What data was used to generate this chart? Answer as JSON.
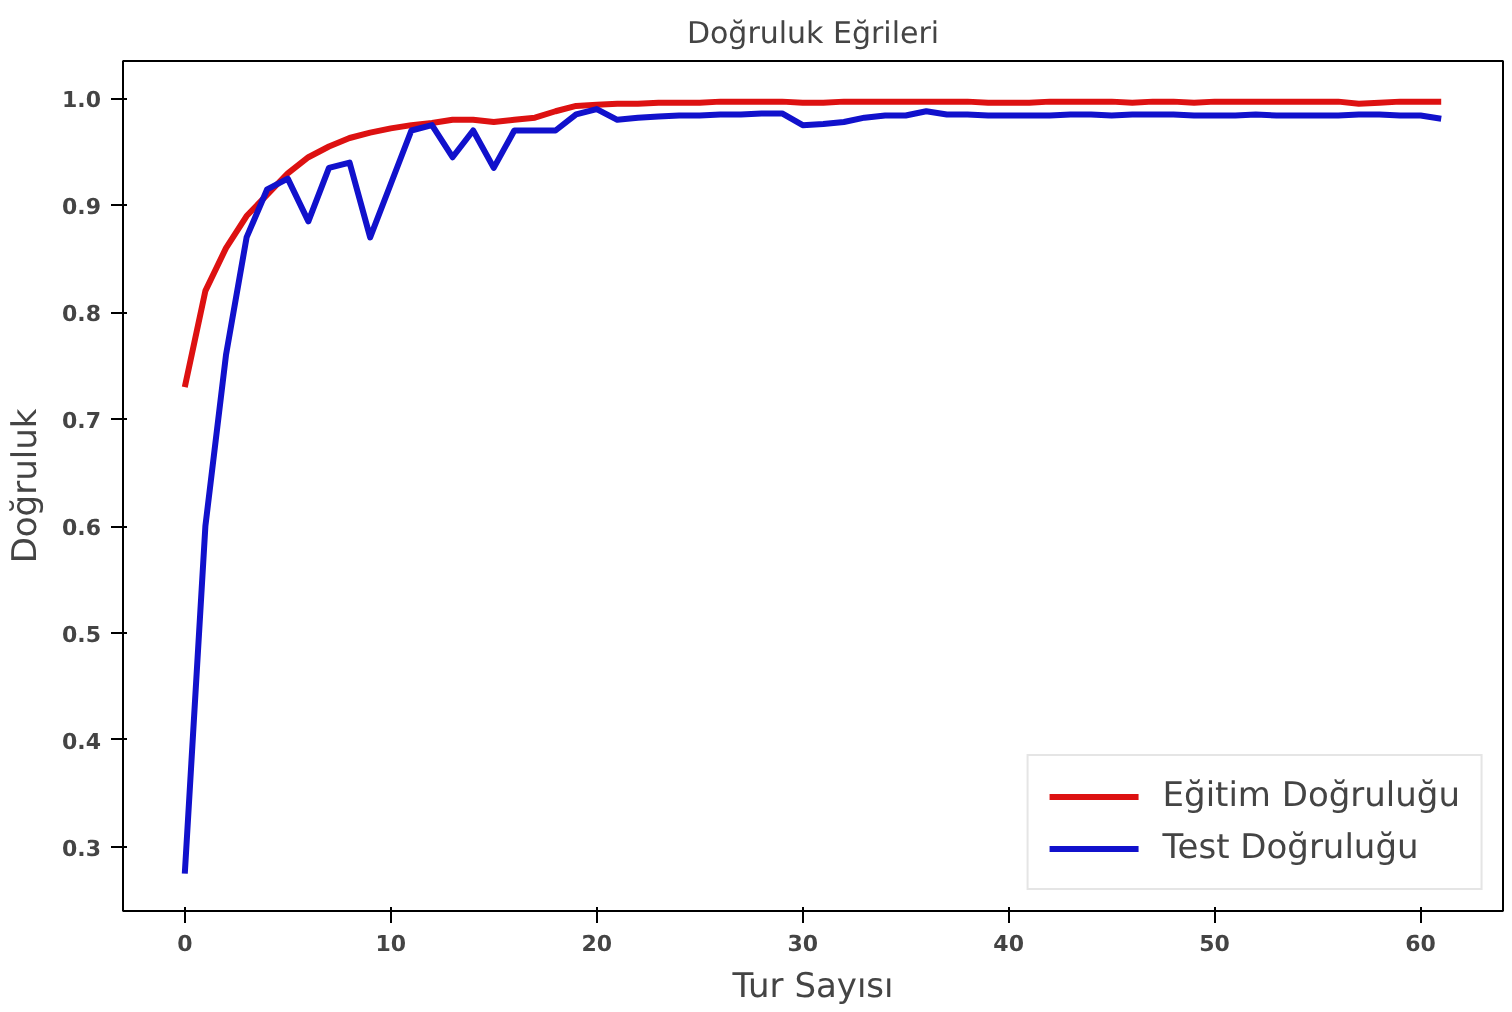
{
  "chart_data": {
    "type": "line",
    "title": "Doğruluk Eğrileri",
    "xlabel": "Tur Sayısı",
    "ylabel": "Doğruluk",
    "x": [
      0,
      1,
      2,
      3,
      4,
      5,
      6,
      7,
      8,
      9,
      10,
      11,
      12,
      13,
      14,
      15,
      16,
      17,
      18,
      19,
      20,
      21,
      22,
      23,
      24,
      25,
      26,
      27,
      28,
      29,
      30,
      31,
      32,
      33,
      34,
      35,
      36,
      37,
      38,
      39,
      40,
      41,
      42,
      43,
      44,
      45,
      46,
      47,
      48,
      49,
      50,
      51,
      52,
      53,
      54,
      55,
      56,
      57,
      58,
      59,
      60,
      61
    ],
    "series": [
      {
        "name": "Eğitim Doğruluğu",
        "color": "#dd1111",
        "values": [
          0.73,
          0.82,
          0.86,
          0.89,
          0.91,
          0.93,
          0.945,
          0.955,
          0.963,
          0.968,
          0.972,
          0.975,
          0.977,
          0.98,
          0.98,
          0.978,
          0.98,
          0.982,
          0.988,
          0.993,
          0.994,
          0.995,
          0.995,
          0.996,
          0.996,
          0.996,
          0.997,
          0.997,
          0.997,
          0.997,
          0.996,
          0.996,
          0.997,
          0.997,
          0.997,
          0.997,
          0.997,
          0.997,
          0.997,
          0.996,
          0.996,
          0.996,
          0.997,
          0.997,
          0.997,
          0.997,
          0.996,
          0.997,
          0.997,
          0.996,
          0.997,
          0.997,
          0.997,
          0.997,
          0.997,
          0.997,
          0.997,
          0.995,
          0.996,
          0.997,
          0.997,
          0.997
        ]
      },
      {
        "name": "Test Doğruluğu",
        "color": "#1111cc",
        "values": [
          0.275,
          0.6,
          0.76,
          0.87,
          0.915,
          0.925,
          0.885,
          0.935,
          0.94,
          0.87,
          0.92,
          0.97,
          0.975,
          0.945,
          0.97,
          0.935,
          0.97,
          0.97,
          0.97,
          0.985,
          0.99,
          0.98,
          0.982,
          0.983,
          0.984,
          0.984,
          0.985,
          0.985,
          0.986,
          0.986,
          0.975,
          0.976,
          0.978,
          0.982,
          0.984,
          0.984,
          0.988,
          0.985,
          0.985,
          0.984,
          0.984,
          0.984,
          0.984,
          0.985,
          0.985,
          0.984,
          0.985,
          0.985,
          0.985,
          0.984,
          0.984,
          0.984,
          0.985,
          0.984,
          0.984,
          0.984,
          0.984,
          0.985,
          0.985,
          0.984,
          0.984,
          0.981
        ]
      }
    ],
    "xlim": [
      -3,
      64
    ],
    "ylim": [
      0.24,
      1.035
    ],
    "xticks": [
      0,
      10,
      20,
      30,
      40,
      50,
      60
    ],
    "yticks": [
      {
        "value": 0.3,
        "label": "0.3"
      },
      {
        "value": 0.4,
        "label": "0.4"
      },
      {
        "value": 0.5,
        "label": "0.5"
      },
      {
        "value": 0.6,
        "label": "0.6"
      },
      {
        "value": 0.7,
        "label": "0.7"
      },
      {
        "value": 0.8,
        "label": "0.8"
      },
      {
        "value": 0.9,
        "label": "0.9"
      },
      {
        "value": 1.0,
        "label": "1.0"
      }
    ],
    "grid": false,
    "legend": "bottom right",
    "line_style": "solid",
    "marker": "none"
  }
}
